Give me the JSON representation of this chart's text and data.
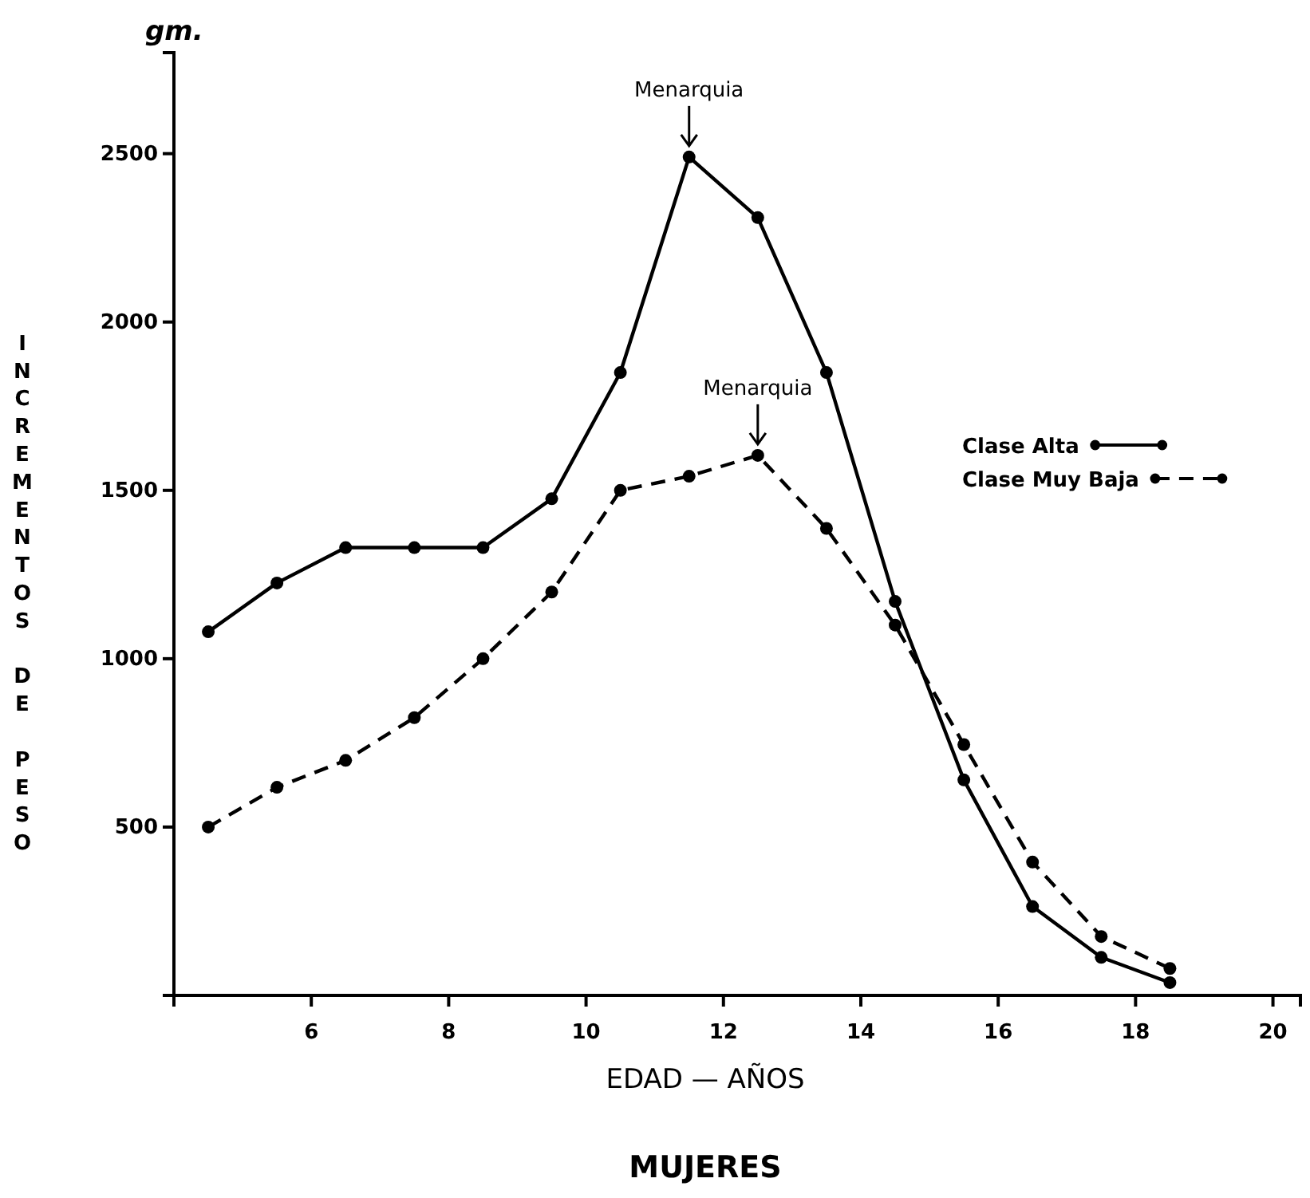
{
  "chart_data": {
    "type": "line",
    "title": "MUJERES",
    "xlabel": "EDAD — AÑOS",
    "ylabel": "INCREMENTOS DE PESO",
    "annotations": [
      "gm.",
      {
        "text": "Menarquia",
        "x": 11.5,
        "y": 2490
      },
      {
        "text": "Menarquia",
        "x": 12.5,
        "y": 1604
      }
    ],
    "x": [
      4.5,
      5.5,
      6.5,
      7.5,
      8.5,
      9.5,
      10.5,
      11.5,
      12.5,
      13.5,
      14.5,
      15.5,
      16.5,
      17.5,
      18.5
    ],
    "series": [
      {
        "name": "Clase Alta",
        "color": "#000000",
        "line_style": "solid",
        "values": [
          1080,
          1225,
          1330,
          1330,
          1330,
          1475,
          1850,
          2490,
          2310,
          1850,
          1170,
          640,
          264,
          113,
          38
        ]
      },
      {
        "name": "Clase Muy Baja",
        "color": "#000000",
        "line_style": "dashed",
        "values": [
          500,
          618,
          698,
          825,
          1000,
          1198,
          1500,
          1542,
          1604,
          1387,
          1100,
          745,
          396,
          175,
          80
        ]
      }
    ],
    "xlim": [
      4,
      20.4
    ],
    "ylim": [
      0,
      2800
    ],
    "xticks": [
      6,
      8,
      10,
      12,
      14,
      16,
      18,
      20
    ],
    "yticks": [
      500,
      1000,
      1500,
      2000,
      2500
    ],
    "marker": "circle",
    "legend": "right",
    "grid": false
  }
}
